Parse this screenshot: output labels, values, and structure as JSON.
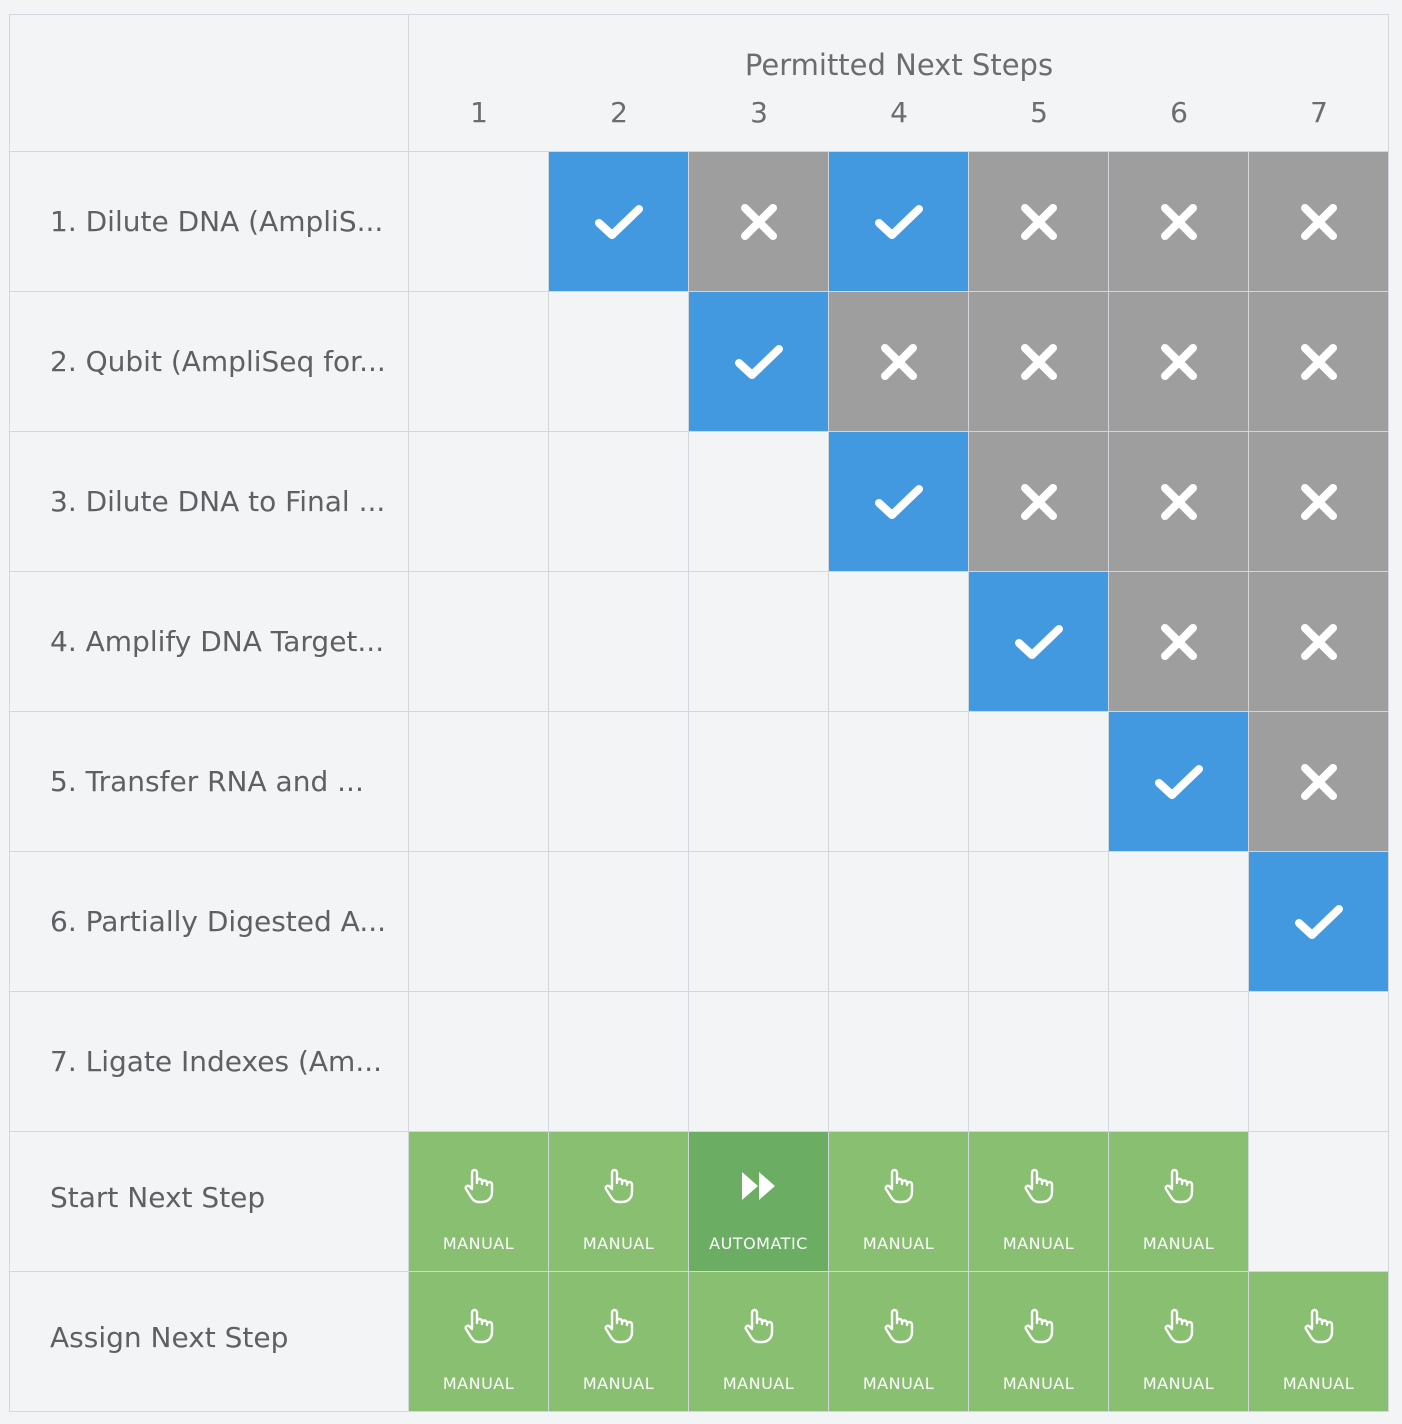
{
  "header": {
    "title": "Permitted Next Steps",
    "columns": [
      "1",
      "2",
      "3",
      "4",
      "5",
      "6",
      "7"
    ]
  },
  "rows": [
    {
      "label": "1. Dilute DNA (AmpliS...",
      "cells": [
        "",
        "yes",
        "no",
        "yes",
        "no",
        "no",
        "no"
      ]
    },
    {
      "label": "2. Qubit (AmpliSeq for...",
      "cells": [
        "",
        "",
        "yes",
        "no",
        "no",
        "no",
        "no"
      ]
    },
    {
      "label": "3. Dilute DNA to Final ...",
      "cells": [
        "",
        "",
        "",
        "yes",
        "no",
        "no",
        "no"
      ]
    },
    {
      "label": "4. Amplify DNA Target...",
      "cells": [
        "",
        "",
        "",
        "",
        "yes",
        "no",
        "no"
      ]
    },
    {
      "label": "5. Transfer RNA and ...",
      "cells": [
        "",
        "",
        "",
        "",
        "",
        "yes",
        "no"
      ]
    },
    {
      "label": "6. Partially Digested A...",
      "cells": [
        "",
        "",
        "",
        "",
        "",
        "",
        "yes"
      ]
    },
    {
      "label": "7. Ligate Indexes (Am...",
      "cells": [
        "",
        "",
        "",
        "",
        "",
        "",
        ""
      ]
    }
  ],
  "actions": [
    {
      "label": "Start Next Step",
      "cells": [
        "MANUAL",
        "MANUAL",
        "AUTOMATIC",
        "MANUAL",
        "MANUAL",
        "MANUAL",
        ""
      ]
    },
    {
      "label": "Assign Next Step",
      "cells": [
        "MANUAL",
        "MANUAL",
        "MANUAL",
        "MANUAL",
        "MANUAL",
        "MANUAL",
        "MANUAL"
      ]
    }
  ],
  "colors": {
    "permitted": "#4299df",
    "not_permitted": "#9e9e9e",
    "manual": "#88bf70",
    "automatic": "#6aad63"
  },
  "icons": {
    "yes": "check-icon",
    "no": "x-icon",
    "MANUAL": "hand-pointer-icon",
    "AUTOMATIC": "fast-forward-icon"
  }
}
